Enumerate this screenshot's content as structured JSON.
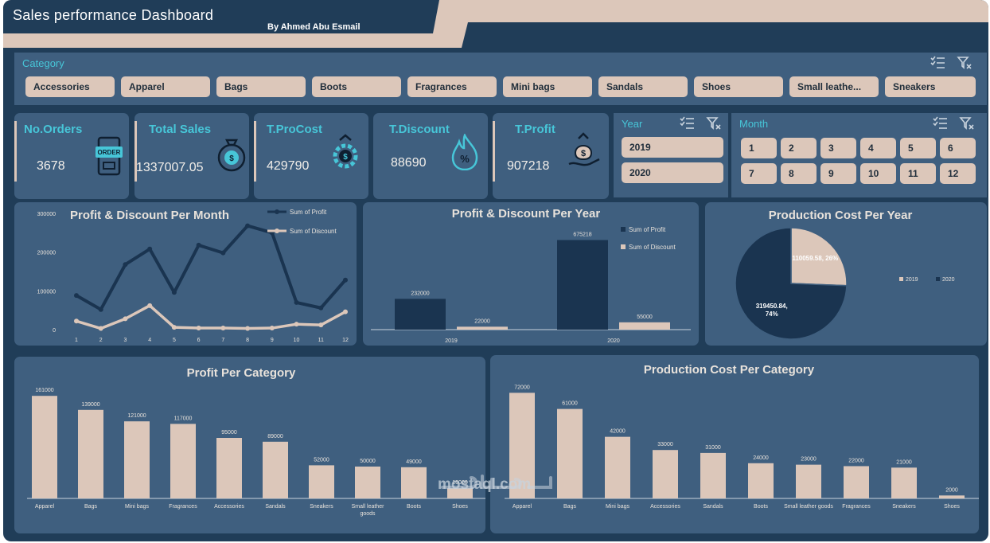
{
  "header": {
    "title": "Sales performance Dashboard",
    "author": "By Ahmed Abu Esmail"
  },
  "category_slicer": {
    "title": "Category",
    "items": [
      "Accessories",
      "Apparel",
      "Bags",
      "Boots",
      "Fragrances",
      "Mini bags",
      "Sandals",
      "Shoes",
      "Small leathe...",
      "Sneakers"
    ]
  },
  "kpis": [
    {
      "label": "No.Orders",
      "value": "3678",
      "icon": "order-icon"
    },
    {
      "label": "Total Sales",
      "value": "1337007.05",
      "icon": "money-bag-icon"
    },
    {
      "label": "T.ProCost",
      "value": "429790",
      "icon": "cost-gear-icon"
    },
    {
      "label": "T.Discount",
      "value": "88690",
      "icon": "discount-flame-icon"
    },
    {
      "label": "T.Profit",
      "value": "907218",
      "icon": "profit-hand-icon"
    }
  ],
  "year_slicer": {
    "title": "Year",
    "items": [
      "2019",
      "2020"
    ]
  },
  "month_slicer": {
    "title": "Month",
    "items": [
      "1",
      "2",
      "3",
      "4",
      "5",
      "6",
      "7",
      "8",
      "9",
      "10",
      "11",
      "12"
    ]
  },
  "colors": {
    "background": "#203d58",
    "panel": "#3f5f7f",
    "accent": "#47c6d8",
    "beige": "#dcc7ba",
    "navy": "#1a3450"
  },
  "watermark": "mostaql.com",
  "chart_data": [
    {
      "id": "profit-discount-month",
      "type": "line",
      "title": "Profit & Discount Per Month",
      "x": [
        "1",
        "2",
        "3",
        "4",
        "5",
        "6",
        "7",
        "8",
        "9",
        "10",
        "11",
        "12"
      ],
      "series": [
        {
          "name": "Sum of Profit",
          "values": [
            88000,
            52000,
            168000,
            208000,
            96000,
            218000,
            198000,
            268000,
            250000,
            70000,
            56000,
            128000
          ],
          "color": "#1a3450"
        },
        {
          "name": "Sum of Discount",
          "values": [
            22000,
            3000,
            28000,
            62000,
            6000,
            4000,
            4000,
            3000,
            4000,
            14000,
            12000,
            46000
          ],
          "color": "#dcc7ba"
        }
      ],
      "ylim": [
        0,
        300000
      ],
      "yticks": [
        "0",
        "100000",
        "200000",
        "300000"
      ],
      "legend": "top-right"
    },
    {
      "id": "profit-discount-year",
      "type": "bar",
      "title": "Profit & Discount Per Year",
      "categories": [
        "2019",
        "2020"
      ],
      "series": [
        {
          "name": "Sum of Profit",
          "values": [
            232000,
            675218
          ],
          "color": "#1a3450"
        },
        {
          "name": "Sum of Discount",
          "values": [
            22000,
            55000
          ],
          "color": "#dcc7ba"
        }
      ],
      "data_labels": [
        [
          "232000",
          "22000"
        ],
        [
          "675218",
          "55000"
        ]
      ],
      "ylim": [
        0,
        720000
      ],
      "legend": "top-right"
    },
    {
      "id": "production-cost-year",
      "type": "pie",
      "title": "Production  Cost Per Year",
      "slices": [
        {
          "label": "2019",
          "value": 110059.58,
          "percent": 26,
          "text": "110059.58, 26%",
          "color": "#dcc7ba"
        },
        {
          "label": "2020",
          "value": 319450.84,
          "percent": 74,
          "text": "319450.84, 74%",
          "color": "#1a3450"
        }
      ],
      "legend": "right"
    },
    {
      "id": "profit-category",
      "type": "bar",
      "title": "Profit Per Category",
      "categories": [
        "Apparel",
        "Bags",
        "Mini bags",
        "Fragrances",
        "Accessories",
        "Sandals",
        "Sneakers",
        "Small leather goods",
        "Boots",
        "Shoes"
      ],
      "values": [
        161000,
        139000,
        121000,
        117000,
        95000,
        89000,
        52000,
        50000,
        49000,
        16000
      ],
      "data_labels": [
        "161000",
        "139000",
        "121000",
        "117000",
        "95000",
        "89000",
        "52000",
        "50000",
        "49000",
        "16000"
      ],
      "ylim": [
        0,
        170000
      ]
    },
    {
      "id": "production-cost-category",
      "type": "bar",
      "title": "Production Cost Per Category",
      "categories": [
        "Apparel",
        "Bags",
        "Mini bags",
        "Accessories",
        "Sandals",
        "Boots",
        "Small leather goods",
        "Fragrances",
        "Sneakers",
        "Shoes"
      ],
      "values": [
        72000,
        61000,
        42000,
        33000,
        31000,
        24000,
        23000,
        22000,
        21000,
        2000
      ],
      "data_labels": [
        "72000",
        "61000",
        "42000",
        "33000",
        "31000",
        "24000",
        "23000",
        "22000",
        "21000",
        "2000"
      ],
      "ylim": [
        0,
        76000
      ]
    }
  ]
}
